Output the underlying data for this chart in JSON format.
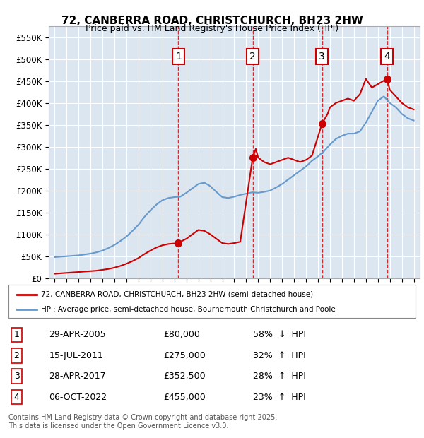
{
  "title": "72, CANBERRA ROAD, CHRISTCHURCH, BH23 2HW",
  "subtitle": "Price paid vs. HM Land Registry's House Price Index (HPI)",
  "background_color": "#dce6f1",
  "plot_bg_color": "#dce6f1",
  "ylim": [
    0,
    575000
  ],
  "yticks": [
    0,
    50000,
    100000,
    150000,
    200000,
    250000,
    300000,
    350000,
    400000,
    450000,
    500000,
    550000
  ],
  "ytick_labels": [
    "£0",
    "£50K",
    "£100K",
    "£150K",
    "£200K",
    "£250K",
    "£300K",
    "£350K",
    "£400K",
    "£450K",
    "£500K",
    "£550K"
  ],
  "xlim_start": 1994.5,
  "xlim_end": 2025.5,
  "sales": [
    {
      "num": 1,
      "year": 2005.33,
      "price": 80000,
      "date": "29-APR-2005",
      "pct": "58%",
      "dir": "↓"
    },
    {
      "num": 2,
      "year": 2011.54,
      "price": 275000,
      "date": "15-JUL-2011",
      "pct": "32%",
      "dir": "↑"
    },
    {
      "num": 3,
      "year": 2017.33,
      "price": 352500,
      "date": "28-APR-2017",
      "pct": "28%",
      "dir": "↑"
    },
    {
      "num": 4,
      "year": 2022.76,
      "price": 455000,
      "date": "06-OCT-2022",
      "pct": "23%",
      "dir": "↑"
    }
  ],
  "sale_color": "#cc0000",
  "hpi_color": "#6699cc",
  "legend_sale_label": "72, CANBERRA ROAD, CHRISTCHURCH, BH23 2HW (semi-detached house)",
  "legend_hpi_label": "HPI: Average price, semi-detached house, Bournemouth Christchurch and Poole",
  "footer1": "Contains HM Land Registry data © Crown copyright and database right 2025.",
  "footer2": "This data is licensed under the Open Government Licence v3.0.",
  "hpi_years": [
    1995,
    1995.5,
    1996,
    1996.5,
    1997,
    1997.5,
    1998,
    1998.5,
    1999,
    1999.5,
    2000,
    2000.5,
    2001,
    2001.5,
    2002,
    2002.5,
    2003,
    2003.5,
    2004,
    2004.5,
    2005,
    2005.5,
    2006,
    2006.5,
    2007,
    2007.5,
    2008,
    2008.5,
    2009,
    2009.5,
    2010,
    2010.5,
    2011,
    2011.5,
    2012,
    2012.5,
    2013,
    2013.5,
    2014,
    2014.5,
    2015,
    2015.5,
    2016,
    2016.5,
    2017,
    2017.5,
    2018,
    2018.5,
    2019,
    2019.5,
    2020,
    2020.5,
    2021,
    2021.5,
    2022,
    2022.5,
    2023,
    2023.5,
    2024,
    2024.5,
    2025
  ],
  "hpi_values": [
    48000,
    49000,
    50000,
    51000,
    52000,
    54000,
    56000,
    59000,
    63000,
    69000,
    76000,
    85000,
    95000,
    108000,
    122000,
    140000,
    155000,
    168000,
    178000,
    183000,
    185000,
    186000,
    195000,
    205000,
    215000,
    218000,
    210000,
    197000,
    185000,
    183000,
    186000,
    190000,
    193000,
    196000,
    195000,
    197000,
    200000,
    207000,
    215000,
    225000,
    235000,
    245000,
    255000,
    268000,
    278000,
    290000,
    305000,
    318000,
    325000,
    330000,
    330000,
    335000,
    355000,
    380000,
    405000,
    415000,
    400000,
    390000,
    375000,
    365000,
    360000
  ],
  "sale_line_years": [
    1995,
    1995.5,
    1996,
    1996.5,
    1997,
    1997.5,
    1998,
    1998.5,
    1999,
    1999.5,
    2000,
    2000.5,
    2001,
    2001.5,
    2002,
    2002.5,
    2003,
    2003.5,
    2004,
    2004.5,
    2005.33,
    2005.5,
    2006,
    2006.5,
    2007,
    2007.5,
    2008,
    2008.5,
    2009,
    2009.5,
    2010,
    2010.5,
    2011.54,
    2011.8,
    2012,
    2012.5,
    2013,
    2013.5,
    2014,
    2014.5,
    2015,
    2015.5,
    2016,
    2016.5,
    2017.33,
    2017.8,
    2018,
    2018.5,
    2019,
    2019.5,
    2020,
    2020.5,
    2021,
    2021.5,
    2022.76,
    2023,
    2023.5,
    2024,
    2024.5,
    2025
  ],
  "sale_line_values": [
    10000,
    11000,
    12000,
    13000,
    14000,
    15000,
    16000,
    17000,
    19000,
    21000,
    24000,
    28000,
    33000,
    39000,
    46000,
    55000,
    63000,
    70000,
    75000,
    78000,
    80000,
    83000,
    90000,
    100000,
    110000,
    108000,
    100000,
    90000,
    80000,
    78000,
    80000,
    83000,
    275000,
    295000,
    275000,
    265000,
    260000,
    265000,
    270000,
    275000,
    270000,
    265000,
    270000,
    280000,
    352500,
    375000,
    390000,
    400000,
    405000,
    410000,
    405000,
    420000,
    455000,
    435000,
    455000,
    430000,
    415000,
    400000,
    390000,
    385000
  ]
}
